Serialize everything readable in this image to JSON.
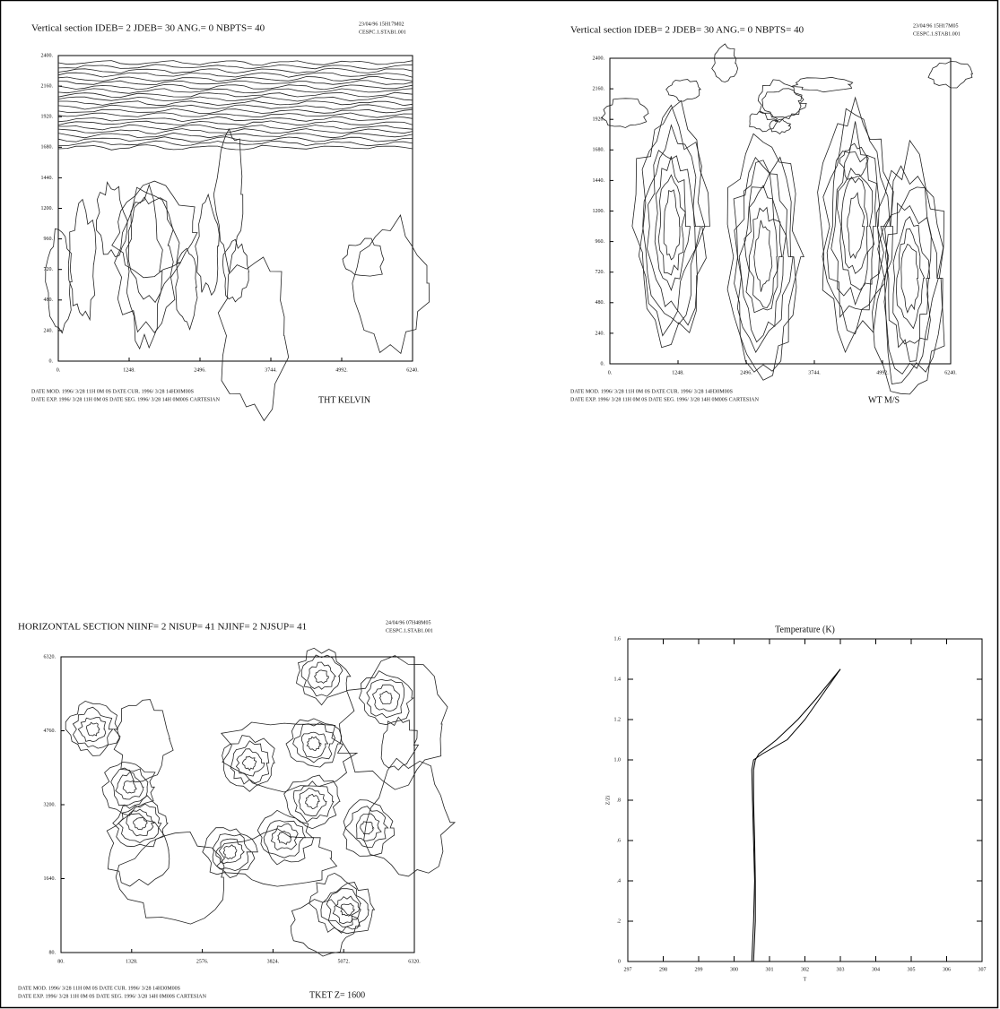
{
  "chart_data": [
    {
      "type": "contour",
      "title": "Vertical section IDEB=  2 JDEB= 30 ANG.=  0 NBPTS= 40",
      "date": "23/04/96     15H17M02",
      "run": "CESPC.1.STAB1.001",
      "footer": [
        "DATE MOD. 1996/ 3/28  11H 0M 0S   DATE CUR. 1996/ 3/28  14H30M00S",
        "DATE EXP. 1996/ 3/28  11H 0M 0S   DATE SEG. 1996/ 3/28  14H 0M00S   CARTESIAN"
      ],
      "variable": "THT    KELVIN",
      "xlim": [
        0,
        6240
      ],
      "ylim": [
        0,
        2400
      ],
      "xticks": [
        {
          "value": 0,
          "label": "0."
        },
        {
          "value": 1248,
          "label": "1248."
        },
        {
          "value": 2496,
          "label": "2496."
        },
        {
          "value": 3744,
          "label": "3744."
        },
        {
          "value": 4992,
          "label": "4992."
        },
        {
          "value": 6240,
          "label": "6240."
        }
      ],
      "yticks": [
        {
          "value": 0,
          "label": "0."
        },
        {
          "value": 240,
          "label": "240."
        },
        {
          "value": 480,
          "label": "480."
        },
        {
          "value": 720,
          "label": "720."
        },
        {
          "value": 960,
          "label": "960."
        },
        {
          "value": 1200,
          "label": "1200."
        },
        {
          "value": 1440,
          "label": "1440."
        },
        {
          "value": 1680,
          "label": "1680."
        },
        {
          "value": 1920,
          "label": "1920."
        },
        {
          "value": 2160,
          "label": "2160."
        },
        {
          "value": 2400,
          "label": "2400."
        }
      ]
    },
    {
      "type": "contour",
      "title": "Vertical section IDEB=  2 JDEB= 30 ANG.=  0 NBPTS= 40",
      "date": "23/04/96     15H17M05",
      "run": "CESPC.1.STAB1.001",
      "footer": [
        "DATE MOD. 1996/ 3/28  11H 0M 0S   DATE CUR. 1996/ 3/28  14H30M00S",
        "DATE EXP. 1996/ 3/28  11H 0M 0S   DATE SEG. 1996/ 3/28  14H 0M00S   CARTESIAN"
      ],
      "variable": "WT    M/S",
      "xlim": [
        0,
        6240
      ],
      "ylim": [
        0,
        2400
      ],
      "xticks": [
        {
          "value": 0,
          "label": "0."
        },
        {
          "value": 1248,
          "label": "1248."
        },
        {
          "value": 2496,
          "label": "2496."
        },
        {
          "value": 3744,
          "label": "3744."
        },
        {
          "value": 4992,
          "label": "4992."
        },
        {
          "value": 6240,
          "label": "6240."
        }
      ],
      "yticks": [
        {
          "value": 0,
          "label": "0."
        },
        {
          "value": 240,
          "label": "240."
        },
        {
          "value": 480,
          "label": "480."
        },
        {
          "value": 720,
          "label": "720."
        },
        {
          "value": 960,
          "label": "960."
        },
        {
          "value": 1200,
          "label": "1200."
        },
        {
          "value": 1440,
          "label": "1440."
        },
        {
          "value": 1680,
          "label": "1680."
        },
        {
          "value": 1920,
          "label": "1920."
        },
        {
          "value": 2160,
          "label": "2160."
        },
        {
          "value": 2400,
          "label": "2400."
        }
      ]
    },
    {
      "type": "contour",
      "title": "HORIZONTAL SECTION NIINF=  2 NISUP= 41 NJINF=  2 NJSUP= 41",
      "date": "24/04/96     07H48M05",
      "run": "CESPC.1.STAB1.001",
      "footer": [
        "DATE MOD. 1996/ 3/28  11H 0M 0S   DATE CUR. 1996/ 3/28  14H30M00S",
        "DATE EXP. 1996/ 3/28  11H 0M 0S   DATE SEG. 1996/ 3/28  14H 0M00S   CARTESIAN"
      ],
      "variable": "TKET Z= 1600",
      "xlim": [
        80,
        6320
      ],
      "ylim": [
        80,
        6320
      ],
      "xticks": [
        {
          "value": 80,
          "label": "80."
        },
        {
          "value": 1328,
          "label": "1328."
        },
        {
          "value": 2576,
          "label": "2576."
        },
        {
          "value": 3824,
          "label": "3824."
        },
        {
          "value": 5072,
          "label": "5072."
        },
        {
          "value": 6320,
          "label": "6320."
        }
      ],
      "yticks": [
        {
          "value": 80,
          "label": "80."
        },
        {
          "value": 1640,
          "label": "1640."
        },
        {
          "value": 3200,
          "label": "3200."
        },
        {
          "value": 4760,
          "label": "4760."
        },
        {
          "value": 6320,
          "label": "6320."
        }
      ]
    },
    {
      "type": "line",
      "title": "Temperature (K)",
      "xlabel": "T",
      "ylabel": "Z/Zi",
      "xlim": [
        297,
        307
      ],
      "ylim": [
        0,
        1.6
      ],
      "xticks": [
        297,
        298,
        299,
        300,
        301,
        302,
        303,
        304,
        305,
        306,
        307
      ],
      "yticks": [
        0,
        {
          "value": 0.2,
          "label": ".2"
        },
        {
          "value": 0.4,
          "label": ".4"
        },
        {
          "value": 0.6,
          "label": ".6"
        },
        {
          "value": 0.8,
          "label": ".8"
        },
        {
          "value": 1.0,
          "label": "1.0"
        },
        1.2,
        1.4,
        1.6
      ],
      "series": [
        {
          "color": "#000000",
          "x": [
            300.55,
            300.6,
            300.6,
            300.58,
            300.55,
            300.55,
            300.6,
            300.7,
            301.2,
            301.8,
            302.3,
            303.0
          ],
          "values": [
            0,
            0.2,
            0.4,
            0.6,
            0.8,
            0.95,
            1.0,
            1.03,
            1.1,
            1.2,
            1.3,
            1.45
          ]
        },
        {
          "color": "#000000",
          "x": [
            300.5,
            300.55,
            300.58,
            300.55,
            300.52,
            300.5,
            300.55,
            300.8,
            301.5,
            302.0,
            302.4,
            303.0
          ],
          "values": [
            0,
            0.2,
            0.4,
            0.6,
            0.8,
            0.95,
            1.0,
            1.03,
            1.1,
            1.2,
            1.3,
            1.45
          ]
        }
      ]
    }
  ]
}
